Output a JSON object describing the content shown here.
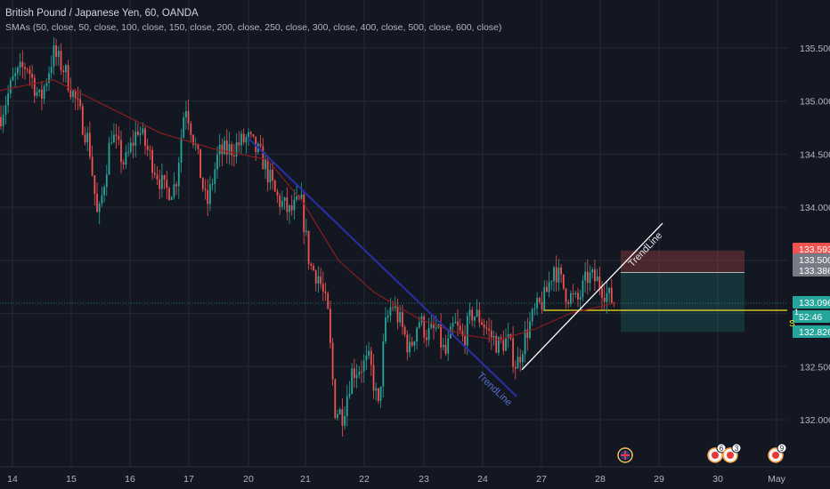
{
  "header": {
    "title": "British Pound / Japanese Yen, 60, OANDA",
    "indicators": "SMAs (50, close, 50, close, 100, close, 150, close, 200, close, 250, close, 300, close, 400, close, 500, close, 600, close)"
  },
  "chart_data": {
    "type": "candlestick",
    "title": "British Pound / Japanese Yen, 60, OANDA",
    "ylim": [
      131.55,
      135.75
    ],
    "y_ticks": [
      "135.500",
      "135.000",
      "134.500",
      "134.000",
      "133.500",
      "132.500",
      "132.000"
    ],
    "x_ticks": [
      "14",
      "15",
      "16",
      "17",
      "20",
      "21",
      "22",
      "23",
      "24",
      "27",
      "28",
      "29",
      "30",
      "May"
    ],
    "price_levels": [
      {
        "label": "133.593",
        "color": "#ef5350"
      },
      {
        "label": "133.500",
        "color": "#787b86"
      },
      {
        "label": "133.386",
        "color": "#787b86"
      },
      {
        "label": "133.096",
        "color": "#26a69a"
      },
      {
        "label": "52:46",
        "color": "#26a69a"
      },
      {
        "label": "132.826",
        "color": "#26a69a"
      }
    ],
    "price_path": [
      [
        0,
        134.85
      ],
      [
        15,
        135.2
      ],
      [
        30,
        135.35
      ],
      [
        45,
        135.0
      ],
      [
        60,
        135.45
      ],
      [
        72,
        135.3
      ],
      [
        85,
        135.0
      ],
      [
        100,
        134.6
      ],
      [
        110,
        133.85
      ],
      [
        125,
        134.7
      ],
      [
        140,
        134.4
      ],
      [
        155,
        134.75
      ],
      [
        170,
        134.45
      ],
      [
        185,
        134.15
      ],
      [
        197,
        134.2
      ],
      [
        208,
        135.0
      ],
      [
        220,
        134.55
      ],
      [
        232,
        134.0
      ],
      [
        245,
        134.5
      ],
      [
        260,
        134.55
      ],
      [
        278,
        134.65
      ],
      [
        295,
        134.45
      ],
      [
        310,
        134.1
      ],
      [
        325,
        133.95
      ],
      [
        338,
        134.05
      ],
      [
        348,
        133.45
      ],
      [
        358,
        133.35
      ],
      [
        368,
        133.0
      ],
      [
        376,
        132.1
      ],
      [
        385,
        132.05
      ],
      [
        395,
        132.45
      ],
      [
        405,
        132.5
      ],
      [
        415,
        132.55
      ],
      [
        425,
        132.1
      ],
      [
        432,
        132.85
      ],
      [
        440,
        133.1
      ],
      [
        450,
        132.9
      ],
      [
        460,
        132.65
      ],
      [
        470,
        132.95
      ],
      [
        480,
        132.8
      ],
      [
        490,
        132.85
      ],
      [
        500,
        132.6
      ],
      [
        510,
        132.9
      ],
      [
        520,
        132.75
      ],
      [
        530,
        133.0
      ],
      [
        540,
        132.95
      ],
      [
        550,
        132.8
      ],
      [
        560,
        132.7
      ],
      [
        570,
        132.75
      ],
      [
        580,
        132.5
      ],
      [
        590,
        132.8
      ],
      [
        600,
        133.0
      ],
      [
        612,
        133.15
      ],
      [
        622,
        133.45
      ],
      [
        635,
        133.2
      ],
      [
        648,
        133.1
      ],
      [
        660,
        133.35
      ],
      [
        672,
        133.3
      ],
      [
        684,
        133.15
      ],
      [
        692,
        133.1
      ]
    ],
    "sma": [
      [
        0,
        135.1
      ],
      [
        60,
        135.2
      ],
      [
        120,
        134.95
      ],
      [
        180,
        134.7
      ],
      [
        240,
        134.55
      ],
      [
        300,
        134.45
      ],
      [
        340,
        134.05
      ],
      [
        380,
        133.5
      ],
      [
        420,
        133.2
      ],
      [
        470,
        132.95
      ],
      [
        520,
        132.8
      ],
      [
        560,
        132.75
      ],
      [
        600,
        132.85
      ],
      [
        640,
        133.0
      ],
      [
        692,
        133.1
      ]
    ],
    "trendlines": [
      {
        "label": "TrendLine",
        "color": "#2a2fa5",
        "label_color": "#5b6fd0",
        "points": [
          [
            279,
            134.65
          ],
          [
            580,
            132.22
          ]
        ]
      },
      {
        "label": "TrendLine",
        "color": "#ffffff",
        "label_color": "#e0e3eb",
        "points": [
          [
            586,
            132.47
          ],
          [
            744,
            133.85
          ]
        ]
      }
    ],
    "horizontal_line": {
      "value": 133.03,
      "color": "#f5e71d"
    },
    "position": {
      "entry": 133.386,
      "stop": 133.593,
      "target": 132.826,
      "x_start": 697,
      "x_end": 836
    },
    "events": [
      {
        "x": 702,
        "kind": "flag-uk",
        "count": ""
      },
      {
        "x": 803,
        "kind": "event",
        "count": "6"
      },
      {
        "x": 820,
        "kind": "event",
        "count": "3"
      },
      {
        "x": 871,
        "kind": "event",
        "count": "9"
      }
    ],
    "grid": true
  },
  "axis_extras": {
    "right_cut_label": "1",
    "side_glyph": "S"
  }
}
